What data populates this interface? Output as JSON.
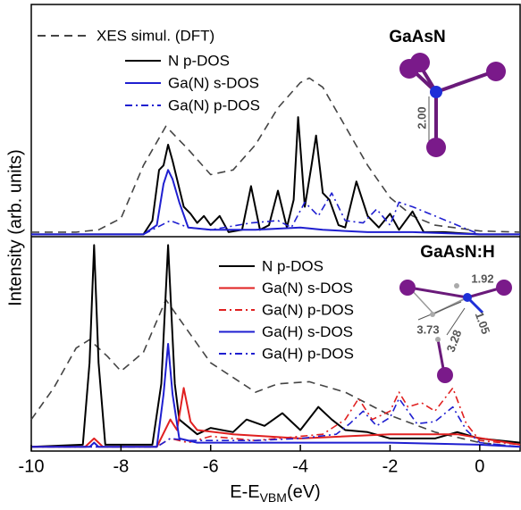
{
  "chart_data": [
    {
      "type": "line",
      "label": "GaAsN",
      "ylabel": "Intensity (arb. units)",
      "xlim": [
        -10,
        0.9
      ],
      "ylim": [
        -1,
        100
      ],
      "annotations": [
        "2.00"
      ],
      "series": [
        {
          "name": "XES simul. (DFT)",
          "color": "#444444",
          "style": "dashed",
          "x": [
            -10,
            -9,
            -8.5,
            -8,
            -7.5,
            -7.0,
            -6.5,
            -6,
            -5.5,
            -5,
            -4.5,
            -4,
            -3.8,
            -3.5,
            -3,
            -2.5,
            -2,
            -1.5,
            -1,
            0,
            0.9
          ],
          "values": [
            1,
            1,
            2,
            7,
            30,
            47,
            37,
            26,
            28,
            39,
            55,
            66,
            68,
            64,
            47,
            30,
            16,
            8,
            4,
            1.5,
            1
          ]
        },
        {
          "name": "N p-DOS",
          "color": "#000000",
          "style": "solid",
          "x": [
            -10,
            -7.5,
            -7.3,
            -7.15,
            -7.05,
            -6.95,
            -6.85,
            -6.75,
            -6.6,
            -6.45,
            -6.3,
            -6.15,
            -6.0,
            -5.8,
            -5.6,
            -5.3,
            -5.1,
            -4.9,
            -4.7,
            -4.5,
            -4.3,
            -4.15,
            -4.05,
            -3.9,
            -3.75,
            -3.65,
            -3.5,
            -3.35,
            -3.15,
            -3.0,
            -2.75,
            -2.5,
            -2.25,
            -2.0,
            -1.8,
            -1.5,
            -1.25,
            -0.8,
            0,
            0.9
          ],
          "values": [
            0,
            0,
            6,
            28,
            30,
            39,
            32,
            24,
            12,
            9,
            5,
            8,
            4,
            8,
            1,
            2,
            21,
            2,
            4,
            19,
            3,
            15,
            51,
            12,
            30,
            43,
            18,
            15,
            4,
            3,
            23,
            8,
            3,
            9,
            2,
            10,
            1,
            1,
            0,
            0
          ]
        },
        {
          "name": "Ga(N) s-DOS",
          "color": "#1f1fd0",
          "style": "solid",
          "x": [
            -10,
            -7.5,
            -7.2,
            -7.05,
            -6.95,
            -6.85,
            -6.7,
            -6.5,
            -6,
            -5,
            -4,
            -3.5,
            -2.5,
            -1.5,
            0,
            0.9
          ],
          "values": [
            0,
            0,
            4,
            22,
            28,
            24,
            14,
            3,
            2,
            2,
            3,
            2,
            1,
            1,
            0,
            0
          ]
        },
        {
          "name": "Ga(N) p-DOS",
          "color": "#1f1fd0",
          "style": "dashdot",
          "x": [
            -10,
            -7.5,
            -6.9,
            -6.5,
            -6,
            -5.1,
            -4.5,
            -4.2,
            -3.9,
            -3.6,
            -3.3,
            -3.0,
            -2.6,
            -2.3,
            -2.0,
            -1.8,
            -1.5,
            -1.0,
            -0.5,
            0,
            0.9
          ],
          "values": [
            0,
            0,
            6,
            3,
            2,
            5,
            6,
            3,
            14,
            8,
            18,
            6,
            5,
            11,
            4,
            14,
            12,
            8,
            4,
            0,
            0
          ]
        }
      ]
    },
    {
      "type": "line",
      "label": "GaAsN:H",
      "xlim": [
        -10,
        0.9
      ],
      "ylim": [
        -2,
        100
      ],
      "xticks": [
        -10,
        -8,
        -6,
        -4,
        -2,
        0
      ],
      "xlabel": "E-E",
      "xlabel_sub": "VBM",
      "xlabel_unit": "(eV)",
      "annotations": [
        "1.92",
        "3.73",
        "3.28",
        "1.05"
      ],
      "series": [
        {
          "color": "#444444",
          "style": "dashed",
          "x": [
            -10,
            -9.5,
            -9,
            -8.7,
            -8.3,
            -8,
            -7.5,
            -7,
            -6.5,
            -6,
            -5,
            -4.5,
            -3.8,
            -3,
            -2,
            -1,
            0,
            0.9
          ],
          "values": [
            13,
            28,
            47,
            51,
            43,
            36,
            45,
            70,
            55,
            40,
            26,
            30,
            31,
            26,
            15,
            7,
            2,
            0
          ]
        },
        {
          "name": "N p-DOS",
          "color": "#000000",
          "style": "solid",
          "x": [
            -10,
            -8.85,
            -8.7,
            -8.6,
            -8.5,
            -8.35,
            -7.3,
            -7.1,
            -6.95,
            -6.8,
            -6.7,
            -6.3,
            -6.0,
            -5.5,
            -5.2,
            -4.8,
            -4.4,
            -4.0,
            -3.6,
            -3.3,
            -3.0,
            -2.5,
            -2.0,
            -1.0,
            -0.5,
            0,
            0.9
          ],
          "values": [
            0,
            1,
            40,
            96,
            40,
            1,
            1,
            30,
            96,
            30,
            13,
            6,
            9,
            7,
            13,
            10,
            16,
            8,
            19,
            13,
            8,
            7,
            4,
            4,
            7,
            4,
            2
          ]
        },
        {
          "name": "Ga(N) s-DOS",
          "color": "#e02020",
          "style": "solid",
          "x": [
            -10,
            -8.8,
            -8.6,
            -8.4,
            -7.2,
            -6.9,
            -6.75,
            -6.6,
            -6.45,
            -6.3,
            -5.5,
            -4,
            -2,
            -0.5,
            0.9
          ],
          "values": [
            0,
            0,
            4,
            0,
            0,
            13,
            8,
            28,
            12,
            8,
            6,
            4,
            6,
            6,
            1
          ]
        },
        {
          "name": "Ga(N) p-DOS",
          "color": "#e02020",
          "style": "dashdot",
          "x": [
            -10,
            -7.2,
            -6.9,
            -6.5,
            -6,
            -5,
            -4,
            -3.5,
            -3,
            -2.7,
            -2.4,
            -2.0,
            -1.8,
            -1.6,
            -1.3,
            -1.0,
            -0.6,
            -0.3,
            0,
            0.9
          ],
          "values": [
            0,
            0,
            4,
            2,
            5,
            3,
            5,
            6,
            13,
            23,
            13,
            17,
            26,
            19,
            21,
            17,
            28,
            11,
            3,
            1
          ]
        },
        {
          "name": "Ga(H) s-DOS",
          "color": "#1f1fd0",
          "style": "solid",
          "x": [
            -10,
            -8.7,
            -8.6,
            -8.5,
            -7.2,
            -7.05,
            -6.95,
            -6.85,
            -6.7,
            -6.3,
            -4,
            -2,
            0,
            0.9
          ],
          "values": [
            0,
            0,
            2,
            0,
            0,
            25,
            49,
            25,
            4,
            2,
            2,
            2,
            1,
            0
          ]
        },
        {
          "name": "Ga(H) p-DOS",
          "color": "#1f1fd0",
          "style": "dashdot",
          "x": [
            -10,
            -7.2,
            -6.9,
            -6.5,
            -5,
            -4,
            -3.2,
            -2.9,
            -2.6,
            -2.3,
            -2.0,
            -1.8,
            -1.4,
            -1.0,
            -0.6,
            -0.3,
            0,
            0.9
          ],
          "values": [
            0,
            0,
            4,
            3,
            3,
            4,
            6,
            11,
            17,
            10,
            14,
            23,
            11,
            12,
            19,
            8,
            2,
            0
          ]
        }
      ]
    }
  ]
}
